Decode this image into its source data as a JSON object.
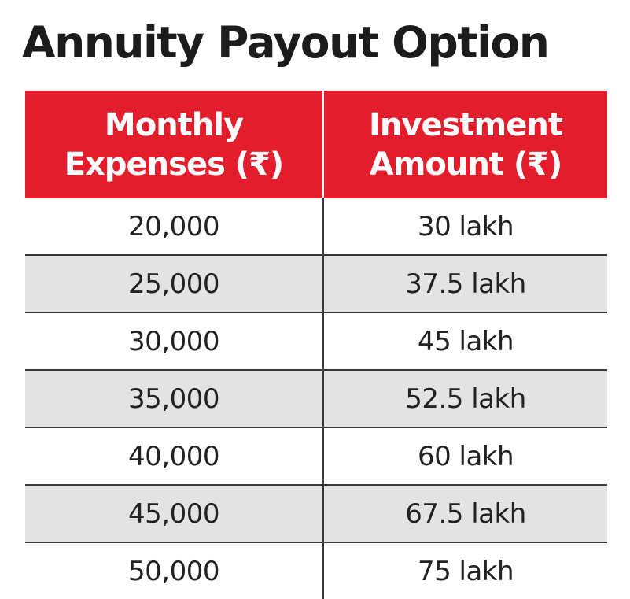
{
  "title": "Annuity Payout Option",
  "table": {
    "headers": [
      {
        "line1": "Monthly",
        "line2": "Expenses (₹)"
      },
      {
        "line1": "Investment",
        "line2": "Amount (₹)"
      }
    ],
    "rows": [
      [
        "20,000",
        "30 lakh"
      ],
      [
        "25,000",
        "37.5 lakh"
      ],
      [
        "30,000",
        "45 lakh"
      ],
      [
        "35,000",
        "52.5 lakh"
      ],
      [
        "40,000",
        "60 lakh"
      ],
      [
        "45,000",
        "67.5 lakh"
      ],
      [
        "50,000",
        "75 lakh"
      ]
    ]
  },
  "colors": {
    "header_bg": "#e21e2d",
    "shaded_row": "#e3e3e3",
    "title_text": "#1c1c1c"
  }
}
